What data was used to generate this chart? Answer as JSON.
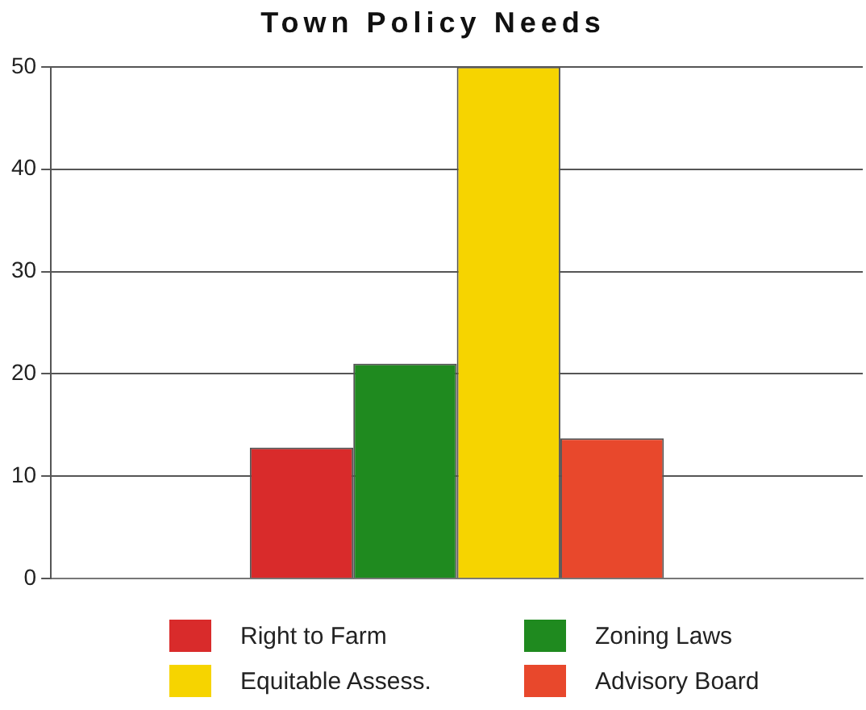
{
  "chart_data": {
    "type": "bar",
    "title": "Town Policy Needs",
    "categories": [
      null
    ],
    "series": [
      {
        "name": "Right to Farm",
        "color": "#d92b2b",
        "values": [
          12.8
        ]
      },
      {
        "name": "Zoning Laws",
        "color": "#1f8a1f",
        "values": [
          21
        ]
      },
      {
        "name": "Equitable Assess.",
        "color": "#f6d400",
        "values": [
          50
        ]
      },
      {
        "name": "Advisory Board",
        "color": "#e8482c",
        "values": [
          13.7
        ]
      }
    ],
    "ylim": [
      0,
      50
    ],
    "yticks": [
      0,
      10,
      20,
      30,
      40,
      50
    ],
    "grid": "y",
    "legend": "bottom"
  }
}
